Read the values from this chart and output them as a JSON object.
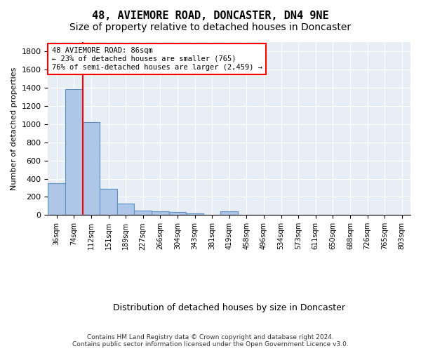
{
  "title": "48, AVIEMORE ROAD, DONCASTER, DN4 9NE",
  "subtitle": "Size of property relative to detached houses in Doncaster",
  "xlabel": "Distribution of detached houses by size in Doncaster",
  "ylabel": "Number of detached properties",
  "bins": [
    "36sqm",
    "74sqm",
    "112sqm",
    "151sqm",
    "189sqm",
    "227sqm",
    "266sqm",
    "304sqm",
    "343sqm",
    "381sqm",
    "419sqm",
    "458sqm",
    "496sqm",
    "534sqm",
    "573sqm",
    "611sqm",
    "650sqm",
    "688sqm",
    "726sqm",
    "765sqm",
    "803sqm"
  ],
  "values": [
    350,
    1380,
    1020,
    285,
    125,
    50,
    45,
    30,
    20,
    0,
    40,
    0,
    0,
    0,
    0,
    0,
    0,
    0,
    0,
    0,
    0
  ],
  "bar_color": "#aec6e8",
  "bar_edge_color": "#5a8fc0",
  "annotation_text": "48 AVIEMORE ROAD: 86sqm\n← 23% of detached houses are smaller (765)\n76% of semi-detached houses are larger (2,459) →",
  "annotation_box_color": "white",
  "annotation_box_edge_color": "red",
  "ylim": [
    0,
    1900
  ],
  "yticks": [
    0,
    200,
    400,
    600,
    800,
    1000,
    1200,
    1400,
    1600,
    1800
  ],
  "red_line_x": 1.5,
  "footer_line1": "Contains HM Land Registry data © Crown copyright and database right 2024.",
  "footer_line2": "Contains public sector information licensed under the Open Government Licence v3.0.",
  "background_color": "#e8eef5",
  "title_fontsize": 11,
  "subtitle_fontsize": 10
}
